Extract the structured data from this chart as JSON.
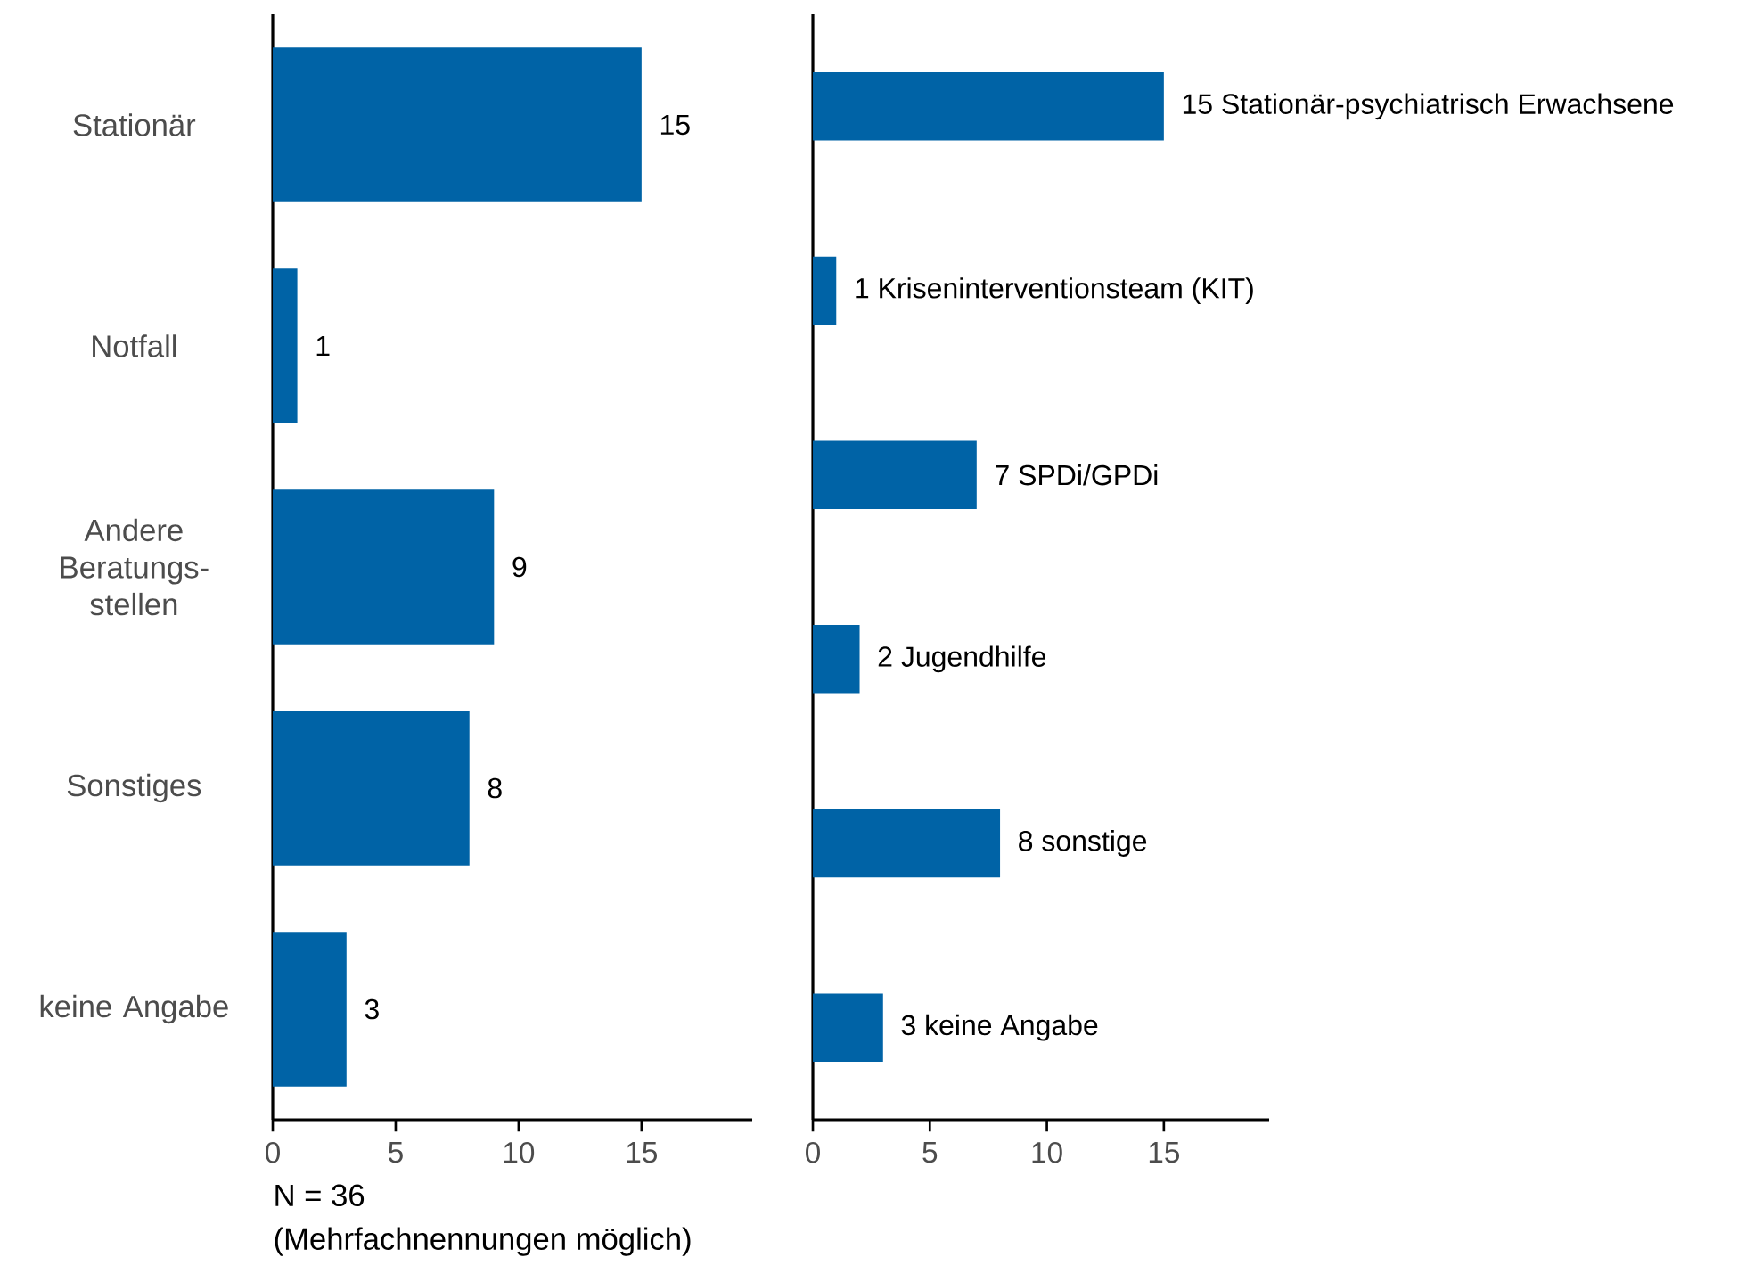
{
  "chart_data": [
    {
      "type": "bar",
      "orientation": "horizontal",
      "categories": [
        "Stationär",
        "Notfall",
        "Andere Beratungs-stellen",
        "Sonstiges",
        "keine Angabe"
      ],
      "values": [
        15,
        1,
        9,
        8,
        3
      ],
      "color": "#0063a6",
      "data_labels": true,
      "xlim": [
        0,
        19.5
      ],
      "xticks": [
        0,
        5,
        10,
        15
      ],
      "annotations": [
        "N = 36",
        "(Mehrfachnennungen möglich)"
      ]
    },
    {
      "type": "bar",
      "orientation": "horizontal",
      "categories": [
        null,
        null,
        null,
        null,
        null,
        null
      ],
      "values": [
        15,
        1,
        7,
        2,
        8,
        3
      ],
      "color": "#0063a6",
      "value_labels": [
        "15 Stationär-psychiatrisch Erwachsene",
        "1 Kriseninterventionsteam (KIT)",
        "7 SPDi/GPDi",
        "2 Jugendhilfe",
        "8 sonstige",
        "3 keine Angabe"
      ],
      "xlim": [
        0,
        19.5
      ],
      "xticks": [
        0,
        5,
        10,
        15
      ],
      "tick_labels": "x"
    }
  ]
}
